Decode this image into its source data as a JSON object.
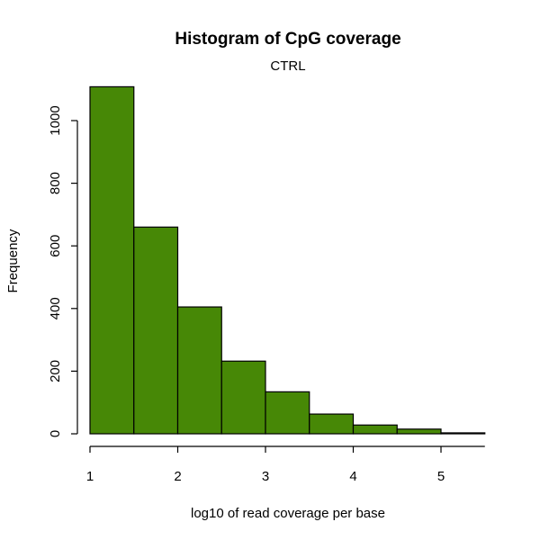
{
  "chart_data": {
    "type": "bar",
    "title": "Histogram of CpG coverage",
    "subtitle": "CTRL",
    "xlabel": "log10 of read coverage per base",
    "ylabel": "Frequency",
    "bins": [
      {
        "start": 1.0,
        "end": 1.5,
        "value": 1108
      },
      {
        "start": 1.5,
        "end": 2.0,
        "value": 660
      },
      {
        "start": 2.0,
        "end": 2.5,
        "value": 405
      },
      {
        "start": 2.5,
        "end": 3.0,
        "value": 232
      },
      {
        "start": 3.0,
        "end": 3.5,
        "value": 134
      },
      {
        "start": 3.5,
        "end": 4.0,
        "value": 63
      },
      {
        "start": 4.0,
        "end": 4.5,
        "value": 28
      },
      {
        "start": 4.5,
        "end": 5.0,
        "value": 15
      },
      {
        "start": 5.0,
        "end": 5.5,
        "value": 3
      }
    ],
    "xticks": [
      1,
      2,
      3,
      4,
      5
    ],
    "yticks": [
      0,
      200,
      400,
      600,
      800,
      1000
    ],
    "xlim": [
      1,
      5.5
    ],
    "ylim": [
      0,
      1108
    ],
    "bar_color": "#478806",
    "grid": false
  }
}
